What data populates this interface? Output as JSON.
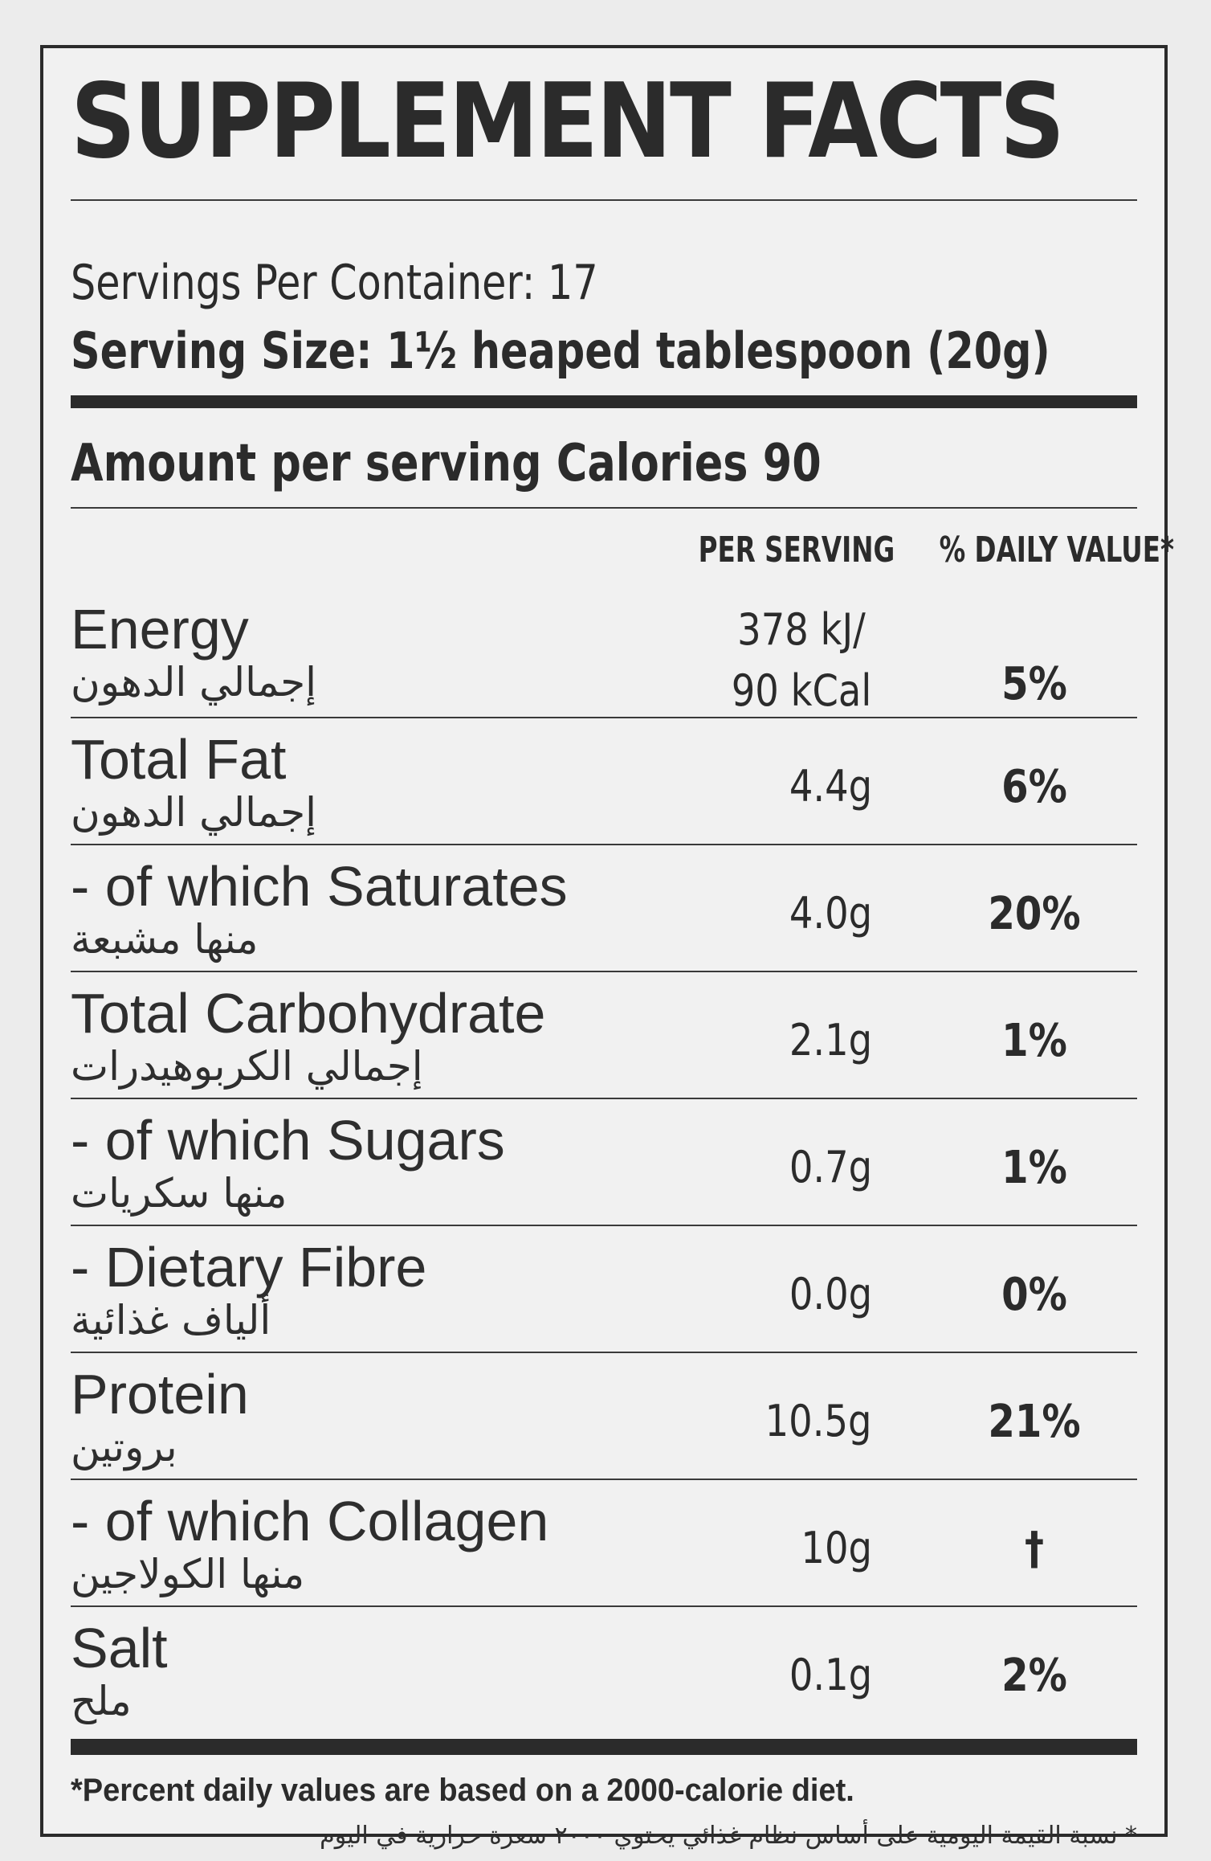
{
  "title": "SUPPLEMENT FACTS",
  "servings_per_container": "Servings Per Container: 17",
  "serving_size": "Serving Size: 1½ heaped tablespoon (20g)",
  "amount_per_serving": "Amount per serving Calories 90",
  "columns": {
    "per_serving": "PER SERVING",
    "daily_value": "% DAILY VALUE*"
  },
  "rows": [
    {
      "label": "Energy",
      "label_ar": "إجمالي الدهون",
      "per": "378 kJ/\n90 kCal",
      "dv": "5%"
    },
    {
      "label": "Total Fat",
      "label_ar": "إجمالي الدهون",
      "per": "4.4g",
      "dv": "6%"
    },
    {
      "label": "- of which Saturates",
      "label_ar": "منها مشبعة",
      "per": "4.0g",
      "dv": "20%"
    },
    {
      "label": "Total Carbohydrate",
      "label_ar": "إجمالي الكربوهيدرات",
      "per": "2.1g",
      "dv": "1%"
    },
    {
      "label": "- of which Sugars",
      "label_ar": "منها سكريات",
      "per": "0.7g",
      "dv": "1%"
    },
    {
      "label": "- Dietary Fibre",
      "label_ar": "ألياف غذائية",
      "per": "0.0g",
      "dv": "0%"
    },
    {
      "label": "Protein",
      "label_ar": "بروتين",
      "per": "10.5g",
      "dv": "21%"
    },
    {
      "label": "- of which Collagen",
      "label_ar": "منها الكولاجين",
      "per": "10g",
      "dv": "†"
    },
    {
      "label": "Salt",
      "label_ar": "ملح",
      "per": "0.1g",
      "dv": "2%"
    }
  ],
  "footnote": "*Percent daily values are based on a 2000-calorie diet.",
  "footnote_ar": "* نسبة القيمة اليومية على أساس نظام غذائي يحتوي ٢٠٠٠ سعرة حرارية في اليوم"
}
